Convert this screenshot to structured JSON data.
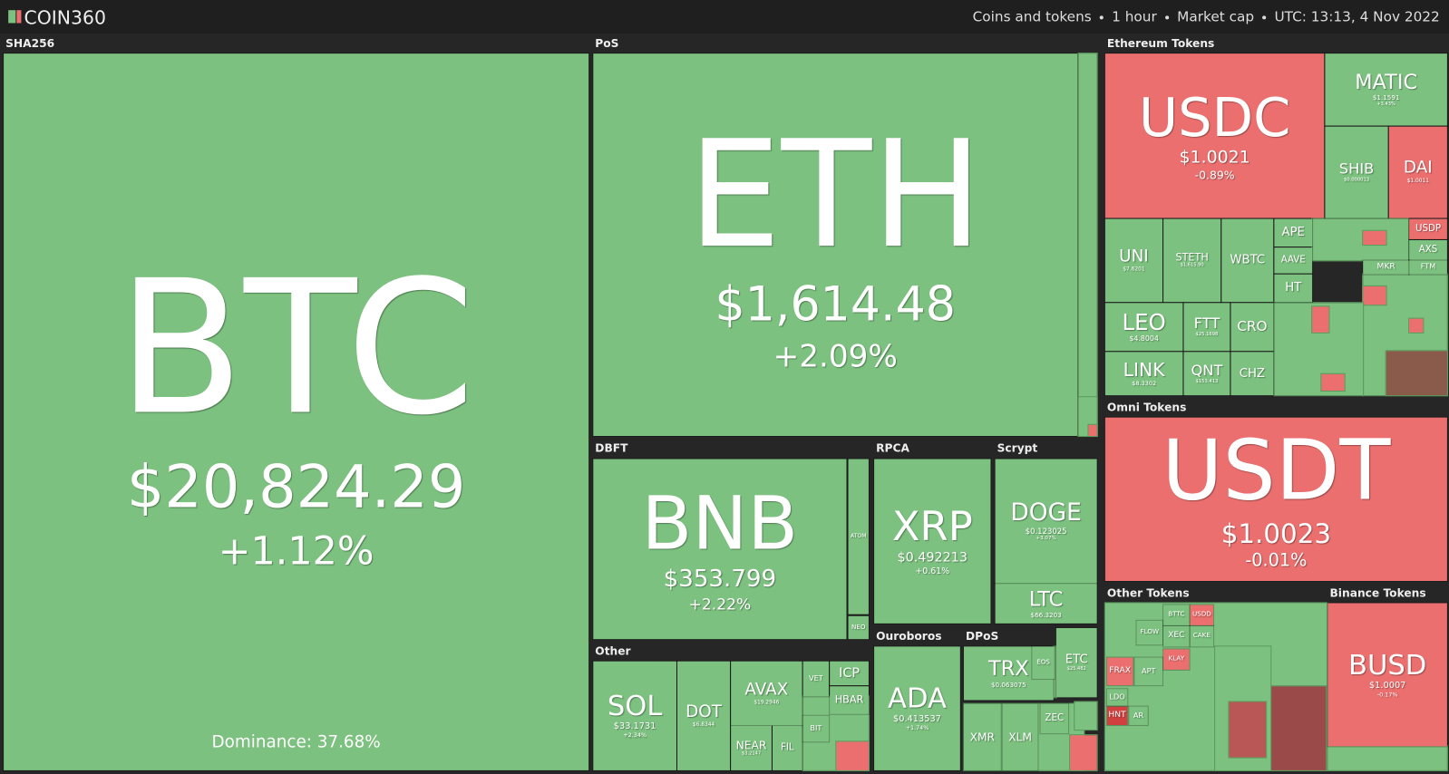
{
  "header": {
    "logo": "COIN360",
    "info": [
      "Coins and tokens",
      "1 hour",
      "Market cap",
      "UTC: 13:13, 4 Nov 2022"
    ]
  },
  "dominance": "Dominance: 37.68%",
  "groups": [
    {
      "name": "SHA256",
      "tiles": [
        {
          "symbol": "BTC",
          "price": "$20,824.29",
          "change": "+1.12%",
          "color": "#7cc17f"
        }
      ]
    },
    {
      "name": "PoS",
      "tiles": [
        {
          "symbol": "ETH",
          "price": "$1,614.48",
          "change": "+2.09%",
          "color": "#7cc17f"
        }
      ]
    },
    {
      "name": "DBFT",
      "tiles": [
        {
          "symbol": "BNB",
          "price": "$353.799",
          "change": "+2.22%",
          "color": "#7cc17f"
        },
        {
          "symbol": "ATOM",
          "color": "#7cc17f"
        },
        {
          "symbol": "NEO",
          "color": "#7cc17f"
        }
      ]
    },
    {
      "name": "RPCA",
      "tiles": [
        {
          "symbol": "XRP",
          "price": "$0.492213",
          "change": "+0.61%",
          "color": "#7cc17f"
        }
      ]
    },
    {
      "name": "Scrypt",
      "tiles": [
        {
          "symbol": "DOGE",
          "price": "$0.123025",
          "change": "+3.07%",
          "color": "#7cc17f"
        },
        {
          "symbol": "LTC",
          "price": "$66.3203",
          "color": "#7cc17f"
        }
      ]
    },
    {
      "name": "Other",
      "tiles": [
        {
          "symbol": "SOL",
          "price": "$33.1731",
          "change": "+2.34%",
          "color": "#7cc17f"
        },
        {
          "symbol": "DOT",
          "price": "$6.8344",
          "color": "#7cc17f"
        },
        {
          "symbol": "AVAX",
          "price": "$19.2946",
          "color": "#7cc17f"
        },
        {
          "symbol": "NEAR",
          "price": "$3.2147",
          "color": "#7cc17f"
        },
        {
          "symbol": "FIL",
          "color": "#7cc17f"
        },
        {
          "symbol": "VET",
          "color": "#7cc17f"
        },
        {
          "symbol": "ICP",
          "color": "#7cc17f"
        },
        {
          "symbol": "HBAR",
          "color": "#7cc17f"
        },
        {
          "symbol": "BIT",
          "color": "#7cc17f"
        }
      ]
    },
    {
      "name": "Ouroboros",
      "tiles": [
        {
          "symbol": "ADA",
          "price": "$0.413537",
          "change": "+1.74%",
          "color": "#7cc17f"
        }
      ]
    },
    {
      "name": "DPoS",
      "tiles": [
        {
          "symbol": "TRX",
          "price": "$0.063075",
          "color": "#7cc17f"
        },
        {
          "symbol": "EOS",
          "color": "#7cc17f"
        },
        {
          "symbol": "ETC",
          "price": "$25.482",
          "color": "#7cc17f"
        },
        {
          "symbol": "XMR",
          "color": "#7cc17f"
        },
        {
          "symbol": "XLM",
          "color": "#7cc17f"
        },
        {
          "symbol": "ZEC",
          "color": "#7cc17f"
        }
      ]
    },
    {
      "name": "Ethereum Tokens",
      "tiles": [
        {
          "symbol": "USDC",
          "price": "$1.0021",
          "change": "-0.89%",
          "color": "#ea6f6e"
        },
        {
          "symbol": "MATIC",
          "price": "$1.1591",
          "change": "+3.43%",
          "color": "#7cc17f"
        },
        {
          "symbol": "SHIB",
          "price": "$0.000013",
          "color": "#7cc17f"
        },
        {
          "symbol": "DAI",
          "price": "$1.0011",
          "color": "#ea6f6e"
        },
        {
          "symbol": "UNI",
          "price": "$7.6201",
          "color": "#7cc17f"
        },
        {
          "symbol": "STETH",
          "price": "$1,615.90",
          "color": "#7cc17f"
        },
        {
          "symbol": "WBTC",
          "color": "#7cc17f"
        },
        {
          "symbol": "APE",
          "color": "#7cc17f"
        },
        {
          "symbol": "AAVE",
          "color": "#7cc17f"
        },
        {
          "symbol": "HT",
          "color": "#7cc17f"
        },
        {
          "symbol": "USDP",
          "color": "#ea6f6e"
        },
        {
          "symbol": "AXS",
          "color": "#7cc17f"
        },
        {
          "symbol": "MKR",
          "color": "#7cc17f"
        },
        {
          "symbol": "FTM",
          "color": "#7cc17f"
        },
        {
          "symbol": "LEO",
          "price": "$4.8004",
          "color": "#7cc17f"
        },
        {
          "symbol": "FTT",
          "price": "$25.1698",
          "color": "#7cc17f"
        },
        {
          "symbol": "CRO",
          "color": "#7cc17f"
        },
        {
          "symbol": "LINK",
          "price": "$8.3302",
          "color": "#7cc17f"
        },
        {
          "symbol": "QNT",
          "price": "$153.413",
          "color": "#7cc17f"
        },
        {
          "symbol": "CHZ",
          "color": "#7cc17f"
        }
      ]
    },
    {
      "name": "Omni Tokens",
      "tiles": [
        {
          "symbol": "USDT",
          "price": "$1.0023",
          "change": "-0.01%",
          "color": "#ea6f6e"
        }
      ]
    },
    {
      "name": "Other Tokens",
      "tiles": [
        {
          "symbol": "BTTC",
          "color": "#7cc17f"
        },
        {
          "symbol": "USDD",
          "color": "#ea6f6e"
        },
        {
          "symbol": "FLOW",
          "color": "#7cc17f"
        },
        {
          "symbol": "XEC",
          "color": "#7cc17f"
        },
        {
          "symbol": "CAKE",
          "color": "#7cc17f"
        },
        {
          "symbol": "FRAX",
          "color": "#ea6f6e"
        },
        {
          "symbol": "APT",
          "color": "#7cc17f"
        },
        {
          "symbol": "KLAY",
          "color": "#ea6f6e"
        },
        {
          "symbol": "HNT",
          "color": "#d0403f"
        },
        {
          "symbol": "LDO",
          "color": "#7cc17f"
        },
        {
          "symbol": "AR",
          "color": "#7cc17f"
        }
      ]
    },
    {
      "name": "Binance Tokens",
      "tiles": [
        {
          "symbol": "BUSD",
          "price": "$1.0007",
          "change": "-0.17%",
          "color": "#ea6f6e"
        }
      ]
    }
  ]
}
